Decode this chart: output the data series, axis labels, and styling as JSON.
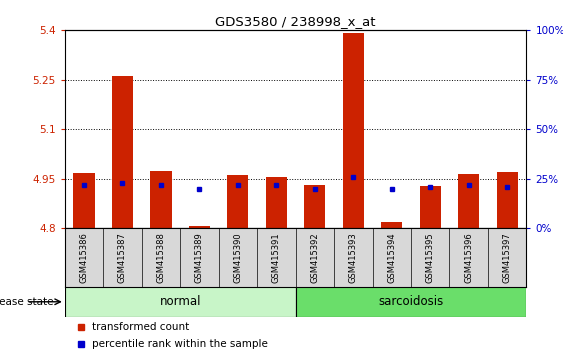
{
  "title": "GDS3580 / 238998_x_at",
  "samples": [
    "GSM415386",
    "GSM415387",
    "GSM415388",
    "GSM415389",
    "GSM415390",
    "GSM415391",
    "GSM415392",
    "GSM415393",
    "GSM415394",
    "GSM415395",
    "GSM415396",
    "GSM415397"
  ],
  "transformed_count": [
    4.968,
    5.26,
    4.975,
    4.808,
    4.962,
    4.955,
    4.93,
    5.39,
    4.82,
    4.928,
    4.963,
    4.972
  ],
  "percentile_rank": [
    22,
    23,
    22,
    20,
    22,
    22,
    20,
    26,
    20,
    21,
    22,
    21
  ],
  "groups": [
    "normal",
    "normal",
    "normal",
    "normal",
    "normal",
    "normal",
    "sarcoidosis",
    "sarcoidosis",
    "sarcoidosis",
    "sarcoidosis",
    "sarcoidosis",
    "sarcoidosis"
  ],
  "normal_color": "#c8f5c8",
  "sarcoidosis_color": "#6ade6a",
  "bar_color": "#cc2200",
  "dot_color": "#0000cc",
  "y_min": 4.8,
  "y_max": 5.4,
  "y_ticks": [
    4.8,
    4.95,
    5.1,
    5.25,
    5.4
  ],
  "y_tick_labels": [
    "4.8",
    "4.95",
    "5.1",
    "5.25",
    "5.4"
  ],
  "right_y_ticks": [
    0,
    25,
    50,
    75,
    100
  ],
  "right_y_tick_labels": [
    "0%",
    "25%",
    "50%",
    "75%",
    "100%"
  ],
  "percentile_min": 0,
  "percentile_max": 100,
  "background_plot": "#ffffff",
  "background_label": "#d8d8d8",
  "grid_color": "#000000",
  "figwidth": 5.63,
  "figheight": 3.54,
  "dpi": 100
}
